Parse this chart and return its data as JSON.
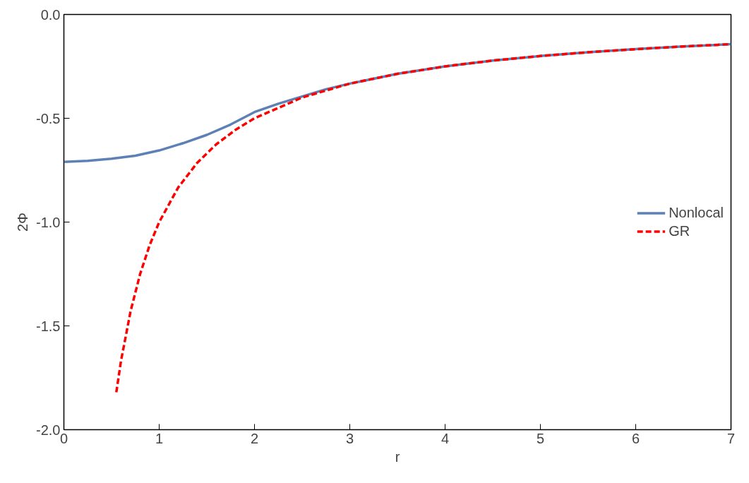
{
  "chart_data": {
    "type": "line",
    "xlabel": "r",
    "ylabel": "2Φ",
    "xlim": [
      0,
      7
    ],
    "xticks": [
      0,
      1,
      2,
      3,
      4,
      5,
      6,
      7
    ],
    "ylim": [
      -2.0,
      0.0
    ],
    "yticks": [
      {
        "value": -2.0,
        "label": "-2.0"
      },
      {
        "value": -1.5,
        "label": "-1.5"
      },
      {
        "value": -1.0,
        "label": "-1.0"
      },
      {
        "value": -0.5,
        "label": "-0.5"
      },
      {
        "value": 0.0,
        "label": "0.0"
      }
    ],
    "grid": false,
    "legend": "right",
    "series": [
      {
        "name": "Nonlocal",
        "color": "#5e81b5",
        "line_style": "solid",
        "x": [
          0,
          0.25,
          0.5,
          0.75,
          1,
          1.25,
          1.5,
          1.75,
          2,
          2.25,
          2.5,
          2.75,
          3,
          3.5,
          4,
          4.5,
          5,
          5.5,
          6,
          6.5,
          7
        ],
        "values": [
          -0.71,
          -0.705,
          -0.695,
          -0.68,
          -0.655,
          -0.62,
          -0.58,
          -0.53,
          -0.47,
          -0.43,
          -0.395,
          -0.36,
          -0.333,
          -0.286,
          -0.25,
          -0.222,
          -0.2,
          -0.182,
          -0.167,
          -0.154,
          -0.143
        ]
      },
      {
        "name": "GR",
        "color": "#ff0000",
        "line_style": "dashed",
        "x": [
          0.55,
          0.6,
          0.7,
          0.8,
          0.9,
          1,
          1.2,
          1.4,
          1.6,
          1.8,
          2,
          2.5,
          3,
          3.5,
          4,
          4.5,
          5,
          5.5,
          6,
          6.5,
          7
        ],
        "values": [
          -1.82,
          -1.667,
          -1.429,
          -1.25,
          -1.111,
          -1.0,
          -0.833,
          -0.714,
          -0.625,
          -0.556,
          -0.5,
          -0.4,
          -0.333,
          -0.286,
          -0.25,
          -0.222,
          -0.2,
          -0.182,
          -0.167,
          -0.154,
          -0.143
        ]
      }
    ]
  }
}
